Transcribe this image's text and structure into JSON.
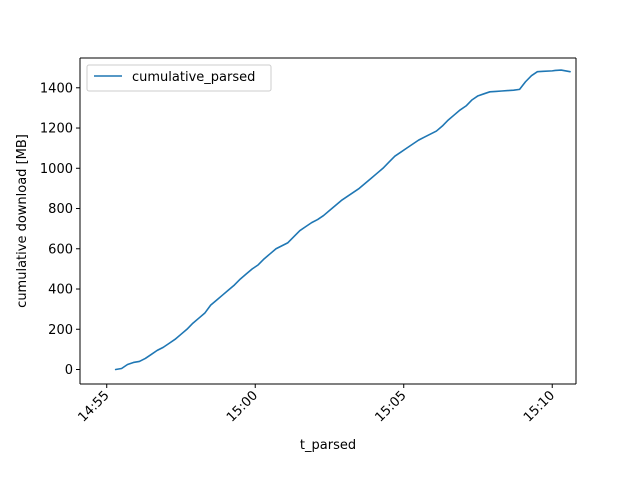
{
  "chart_data": {
    "type": "line",
    "xlabel": "t_parsed",
    "ylabel": "cumulative download [MB]",
    "x_tick_labels": [
      "14:55",
      "15:00",
      "15:05",
      "15:10"
    ],
    "x_tick_minutes": [
      0,
      5,
      10,
      15
    ],
    "y_ticks": [
      0,
      200,
      400,
      600,
      800,
      1000,
      1200,
      1400
    ],
    "xlim_minutes": [
      -0.9,
      15.8
    ],
    "ylim": [
      -72,
      1548
    ],
    "grid": false,
    "legend": {
      "placement": "top-left",
      "entries": [
        "cumulative_parsed"
      ]
    },
    "series": [
      {
        "name": "cumulative_parsed",
        "color": "#1f77b4",
        "x_minutes": [
          0.3,
          0.5,
          0.7,
          0.9,
          1.1,
          1.3,
          1.5,
          1.7,
          1.9,
          2.1,
          2.3,
          2.5,
          2.7,
          2.9,
          3.1,
          3.3,
          3.5,
          3.7,
          3.9,
          4.1,
          4.3,
          4.5,
          4.7,
          4.9,
          5.1,
          5.3,
          5.5,
          5.7,
          5.9,
          6.1,
          6.3,
          6.5,
          6.7,
          6.9,
          7.1,
          7.3,
          7.5,
          7.7,
          7.9,
          8.1,
          8.3,
          8.5,
          8.7,
          8.9,
          9.1,
          9.3,
          9.5,
          9.7,
          9.9,
          10.1,
          10.3,
          10.5,
          10.7,
          10.9,
          11.1,
          11.3,
          11.5,
          11.7,
          11.9,
          12.1,
          12.3,
          12.5,
          12.7,
          12.9,
          13.1,
          13.3,
          13.5,
          13.7,
          13.9,
          14.1,
          14.3,
          14.5,
          14.7,
          15.0,
          15.1,
          15.3,
          15.6
        ],
        "values": [
          0,
          5,
          25,
          35,
          40,
          55,
          75,
          95,
          110,
          130,
          150,
          175,
          200,
          230,
          255,
          280,
          320,
          345,
          370,
          395,
          420,
          450,
          475,
          500,
          520,
          550,
          575,
          600,
          615,
          630,
          660,
          690,
          710,
          730,
          745,
          765,
          790,
          815,
          840,
          860,
          880,
          900,
          925,
          950,
          975,
          1000,
          1030,
          1060,
          1080,
          1100,
          1120,
          1140,
          1155,
          1170,
          1185,
          1210,
          1240,
          1265,
          1290,
          1310,
          1340,
          1360,
          1370,
          1380,
          1382,
          1384,
          1386,
          1388,
          1392,
          1430,
          1460,
          1480,
          1482,
          1484,
          1486,
          1488,
          1480
        ]
      }
    ]
  }
}
